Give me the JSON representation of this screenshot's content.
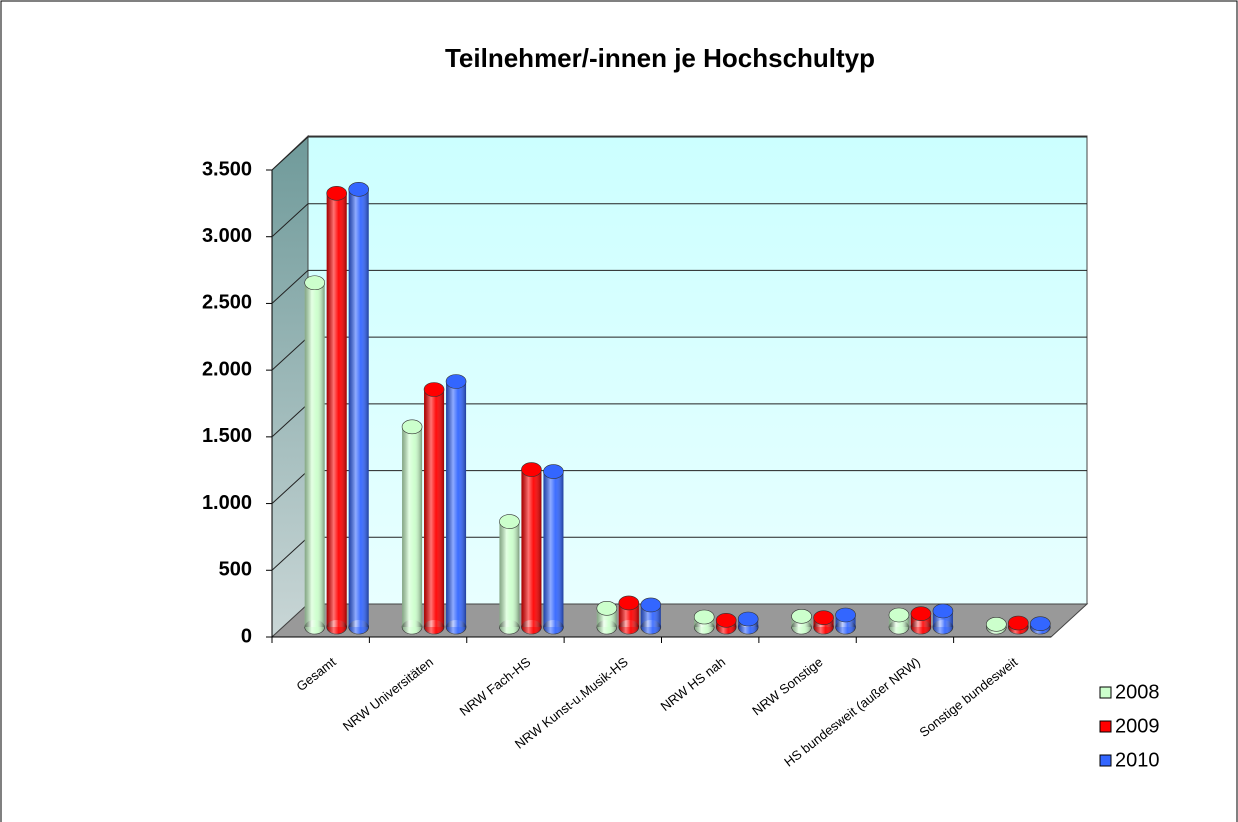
{
  "chart_data": {
    "type": "bar3d",
    "title": "Teilnehmer/-innen je Hochschultyp",
    "categories": [
      "Gesamt",
      "NRW Universitäten",
      "NRW Fach-HS",
      "NRW Kunst-u.Musik-HS",
      "NRW HS nah",
      "NRW Sonstige",
      "HS bundesweit (außer NRW)",
      "Sonstige bundesweit"
    ],
    "series": [
      {
        "name": "2008",
        "color": "#ccffcc",
        "values": [
          2580,
          1500,
          790,
          140,
          75,
          80,
          90,
          20
        ]
      },
      {
        "name": "2009",
        "color": "#ff0000",
        "values": [
          3250,
          1780,
          1180,
          180,
          50,
          70,
          100,
          30
        ]
      },
      {
        "name": "2010",
        "color": "#3366ff",
        "values": [
          3280,
          1840,
          1165,
          165,
          60,
          90,
          120,
          25
        ]
      }
    ],
    "ylim": [
      0,
      3500
    ],
    "yticks": [
      0,
      500,
      {
        "value": 1000,
        "label": "1.000"
      },
      {
        "value": 1500,
        "label": "1.500"
      },
      {
        "value": 2000,
        "label": "2.000"
      },
      {
        "value": 2500,
        "label": "2.500"
      },
      {
        "value": 3000,
        "label": "3.000"
      },
      {
        "value": 3500,
        "label": "3.500"
      }
    ],
    "grid": true,
    "legend": "right"
  }
}
